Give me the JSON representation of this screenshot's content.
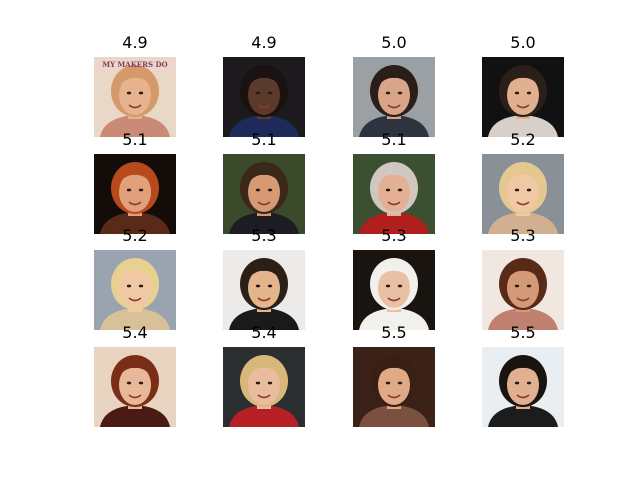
{
  "grid": {
    "rows": 4,
    "columns": 4,
    "tiles": [
      {
        "score": "4.9",
        "bg": "#e9d8c8",
        "skin": "#e7b38f",
        "hair": "#d49a6a",
        "shirt": "#c98b76",
        "banner": "MY MAKERS DO"
      },
      {
        "score": "4.9",
        "bg": "#1c1a1c",
        "skin": "#5a3a2a",
        "hair": "#1a1210",
        "shirt": "#1e2a5a"
      },
      {
        "score": "5.0",
        "bg": "#9aa0a4",
        "skin": "#d9a58a",
        "hair": "#2b1e18",
        "shirt": "#2d3440"
      },
      {
        "score": "5.0",
        "bg": "#111111",
        "skin": "#e0b090",
        "hair": "#2b1f1a",
        "shirt": "#d8d0c8"
      },
      {
        "score": "5.1",
        "bg": "#140c08",
        "skin": "#e0a07a",
        "hair": "#b64a1c",
        "shirt": "#5a2a18"
      },
      {
        "score": "5.1",
        "bg": "#3a4a2a",
        "skin": "#d69a74",
        "hair": "#3a2818",
        "shirt": "#1c1c22"
      },
      {
        "score": "5.1",
        "bg": "#3a5030",
        "skin": "#e4b094",
        "hair": "#d0c8c0",
        "shirt": "#b01e1e"
      },
      {
        "score": "5.2",
        "bg": "#8a9098",
        "skin": "#f0c8a4",
        "hair": "#e4c890",
        "shirt": "#d0b090"
      },
      {
        "score": "5.2",
        "bg": "#9aa4b0",
        "skin": "#f0c8a4",
        "hair": "#e8d090",
        "shirt": "#d8c098"
      },
      {
        "score": "5.3",
        "bg": "#ecebea",
        "skin": "#e4b48c",
        "hair": "#2a2018",
        "shirt": "#1a1a1a"
      },
      {
        "score": "5.3",
        "bg": "#1a1410",
        "skin": "#eac0a4",
        "hair": "#f2f0ec",
        "shirt": "#f2f0ec"
      },
      {
        "score": "5.3",
        "bg": "#f0e8e0",
        "skin": "#d49a78",
        "hair": "#5a2a18",
        "shirt": "#c08070"
      },
      {
        "score": "5.4",
        "bg": "#e8d4c0",
        "skin": "#e8b898",
        "hair": "#7a2e18",
        "shirt": "#4a1a14"
      },
      {
        "score": "5.4",
        "bg": "#2a2e30",
        "skin": "#e8bc9c",
        "hair": "#d8b87a",
        "shirt": "#b82028"
      },
      {
        "score": "5.5",
        "bg": "#3a2218",
        "skin": "#e0aa86",
        "hair": "#3a2014",
        "shirt": "#7a5040"
      },
      {
        "score": "5.5",
        "bg": "#e8eef2",
        "skin": "#e0b090",
        "hair": "#1a1410",
        "shirt": "#1c1c1c"
      }
    ]
  }
}
